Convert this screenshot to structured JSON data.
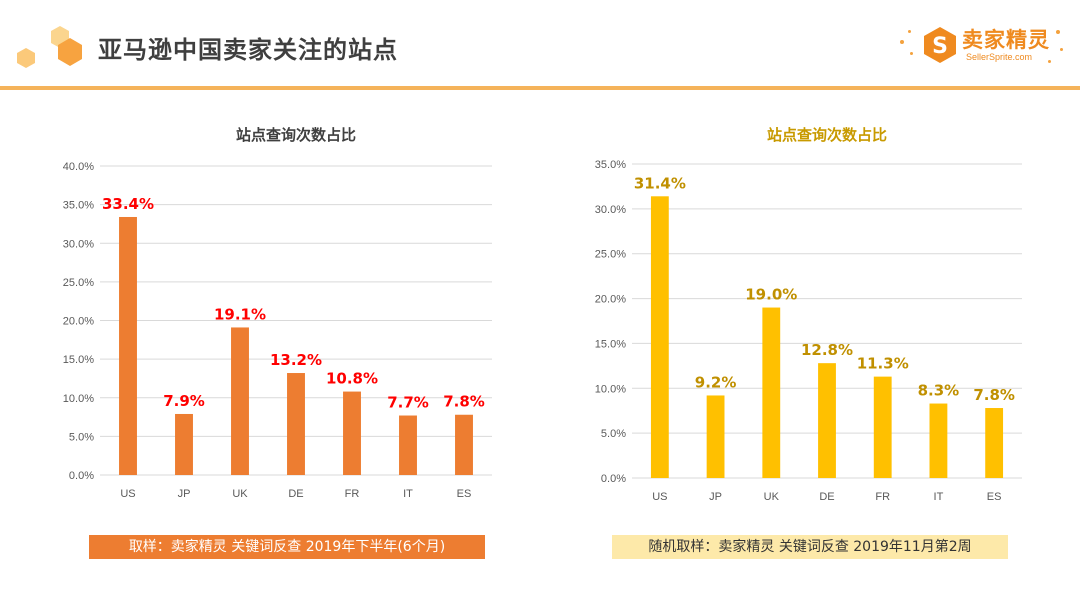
{
  "page": {
    "title": "亚马逊中国卖家关注的站点"
  },
  "logo": {
    "name": "卖家精灵",
    "url": "SellerSprite.com",
    "icon": "s-hexagon-icon"
  },
  "colors": {
    "header_rule": "#f5b35a",
    "left_bar": "#ed7d31",
    "left_label": "#ff0000",
    "right_bar": "#ffc000",
    "right_label": "#c09000"
  },
  "chart_data": [
    {
      "type": "bar",
      "title": "站点查询次数占比",
      "categories": [
        "US",
        "JP",
        "UK",
        "DE",
        "FR",
        "IT",
        "ES"
      ],
      "values": [
        33.4,
        7.9,
        19.1,
        13.2,
        10.8,
        7.7,
        7.8
      ],
      "value_labels": [
        "33.4%",
        "7.9%",
        "19.1%",
        "13.2%",
        "10.8%",
        "7.7%",
        "7.8%"
      ],
      "yticks": [
        "0.0%",
        "5.0%",
        "10.0%",
        "15.0%",
        "20.0%",
        "25.0%",
        "30.0%",
        "35.0%",
        "40.0%"
      ],
      "ylim": [
        0,
        40
      ],
      "xlabel": "",
      "ylabel": "",
      "grid": true,
      "bar_color": "#ed7d31",
      "label_color": "#ff0000",
      "title_color": "#404040",
      "note": "取样：卖家精灵 关键词反查  2019年下半年(6个月)"
    },
    {
      "type": "bar",
      "title": "站点查询次数占比",
      "categories": [
        "US",
        "JP",
        "UK",
        "DE",
        "FR",
        "IT",
        "ES"
      ],
      "values": [
        31.4,
        9.2,
        19.0,
        12.8,
        11.3,
        8.3,
        7.8
      ],
      "value_labels": [
        "31.4%",
        "9.2%",
        "19.0%",
        "12.8%",
        "11.3%",
        "8.3%",
        "7.8%"
      ],
      "yticks": [
        "0.0%",
        "5.0%",
        "10.0%",
        "15.0%",
        "20.0%",
        "25.0%",
        "30.0%",
        "35.0%"
      ],
      "ylim": [
        0,
        35
      ],
      "xlabel": "",
      "ylabel": "",
      "grid": true,
      "bar_color": "#ffc000",
      "label_color": "#c09000",
      "title_color": "#c89a00",
      "note": "随机取样：卖家精灵 关键词反查  2019年11月第2周"
    }
  ]
}
